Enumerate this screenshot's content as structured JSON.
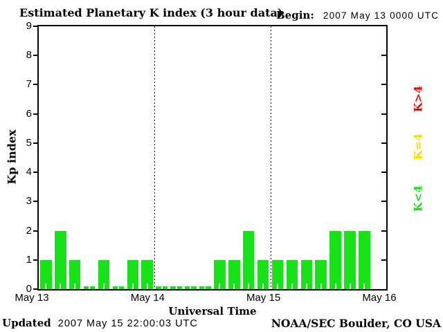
{
  "title": "Estimated Planetary K index (3 hour data)",
  "begin": {
    "label": "Begin:",
    "value": "2007 May 13 0000 UTC"
  },
  "footer": {
    "updated_label": "Updated",
    "updated_value": "2007 May 15 22:00:03 UTC",
    "credit": "NOAA/SEC Boulder, CO USA"
  },
  "legend": [
    {
      "label": "K>4",
      "color": "#ff0000"
    },
    {
      "label": "K=4",
      "color": "#ffd700"
    },
    {
      "label": "K<4",
      "color": "#17e217"
    }
  ],
  "chart_data": {
    "type": "bar",
    "title": "Estimated Planetary K index (3 hour data)",
    "xlabel": "Universal Time",
    "ylabel": "Kp index",
    "ylim": [
      0,
      9
    ],
    "yticks": [
      0,
      1,
      2,
      3,
      4,
      5,
      6,
      7,
      8,
      9
    ],
    "xticks": [
      "May 13",
      "May 14",
      "May 15",
      "May 16"
    ],
    "interval_hours": 3,
    "slots_per_day": 8,
    "days_shown": 3,
    "bar_color": "#17e217",
    "grid": "dotted-vertical-at-day-boundaries",
    "series": [
      {
        "day": "May 13",
        "values": [
          1,
          2,
          1,
          0,
          1,
          0,
          1,
          1
        ]
      },
      {
        "day": "May 14",
        "values": [
          0,
          0,
          0,
          0,
          1,
          1,
          2,
          1
        ]
      },
      {
        "day": "May 15",
        "values": [
          1,
          1,
          1,
          1,
          2,
          2,
          2
        ]
      }
    ]
  }
}
